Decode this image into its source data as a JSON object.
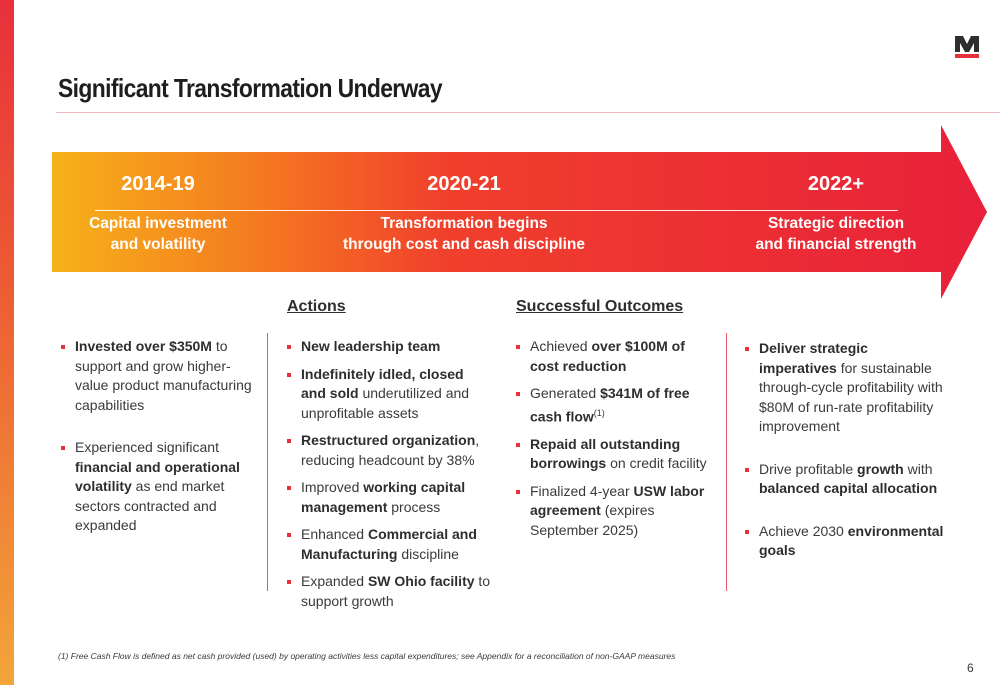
{
  "slide": {
    "title": "Significant Transformation Underway",
    "page_number": "6",
    "footnote": "(1)  Free Cash Flow is defined as net cash provided (used) by operating activities less capital expenditures; see Appendix for a reconciliation of non-GAAP measures"
  },
  "colors": {
    "accent_red": "#e8303c",
    "orange": "#f47a20",
    "amber": "#f6b21a"
  },
  "logo": {
    "letter": "M"
  },
  "timeline": {
    "periods": [
      {
        "year": "2014-19",
        "desc_line1": "Capital investment",
        "desc_line2": "and volatility"
      },
      {
        "year": "2020-21",
        "desc_line1": "Transformation begins",
        "desc_line2": "through cost and cash discipline"
      },
      {
        "year": "2022+",
        "desc_line1": "Strategic direction",
        "desc_line2": "and financial strength"
      }
    ]
  },
  "columns": {
    "past": {
      "bullets": [
        [
          "Invested over $350M",
          " to support and grow higher-value product manufacturing capabilities"
        ],
        [
          "Experienced significant ",
          "financial and operational volatility",
          " as end market sectors contracted and expanded"
        ]
      ]
    },
    "actions": {
      "heading": "Actions",
      "bullets": [
        [
          "New leadership team"
        ],
        [
          "Indefinitely idled, closed and sold",
          " underutilized and unprofitable assets"
        ],
        [
          "Restructured organization",
          ", reducing headcount by 38%"
        ],
        [
          "Improved ",
          "working capital management",
          " process"
        ],
        [
          "Enhanced ",
          "Commercial and Manufacturing",
          " discipline"
        ],
        [
          "Expanded ",
          "SW Ohio facility",
          " to support growth"
        ]
      ]
    },
    "outcomes": {
      "heading": "Successful Outcomes",
      "bullets": [
        [
          "Achieved ",
          "over $100M of cost reduction"
        ],
        [
          "Generated ",
          "$341M of free cash flow",
          "(1)"
        ],
        [
          "Repaid all outstanding borrowings",
          " on credit facility"
        ],
        [
          "Finalized 4-year ",
          "USW labor agreement",
          " (expires September 2025)"
        ]
      ]
    },
    "future": {
      "bullets": [
        [
          "Deliver strategic imperatives",
          " for sustainable through-cycle profitability with $80M of run-rate profitability improvement"
        ],
        [
          "Drive profitable ",
          "growth",
          " with ",
          "balanced capital allocation"
        ],
        [
          "Achieve 2030 ",
          "environmental goals"
        ]
      ]
    }
  }
}
